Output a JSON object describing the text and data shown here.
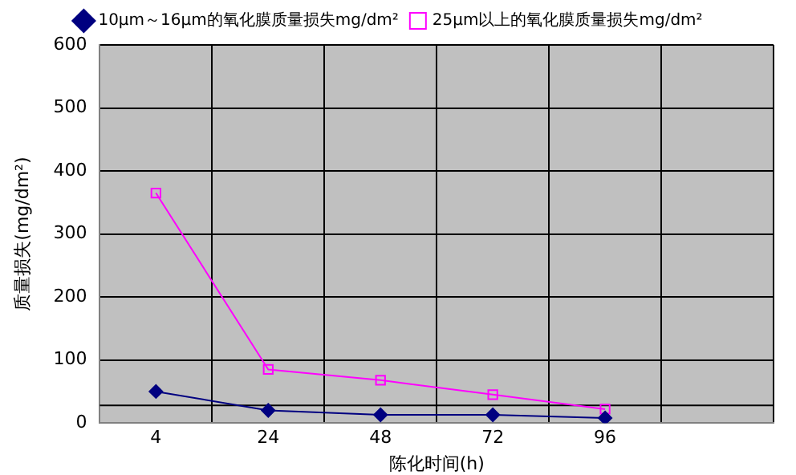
{
  "chart_data": {
    "type": "line",
    "xlabel": "陈化时间(h)",
    "ylabel": "质量损失(mg/dm²)",
    "categories": [
      "4",
      "24",
      "48",
      "72",
      "96",
      null
    ],
    "series": [
      {
        "name": "10μm～16μm的氧化膜质量损失mg/dm²",
        "color": "#000080",
        "marker": "diamond",
        "values": [
          50,
          20,
          13,
          13,
          8,
          null
        ]
      },
      {
        "name": "25μm以上的氧化膜质量损失mg/dm²",
        "color": "#ff00ff",
        "marker": "square",
        "values": [
          365,
          85,
          68,
          45,
          22,
          null
        ]
      }
    ],
    "ylim": [
      0,
      600
    ],
    "yticks": [
      0,
      100,
      200,
      300,
      400,
      500,
      600
    ],
    "grid": true,
    "legend": "top",
    "ref_lines": [
      {
        "axis": "y",
        "value": 28,
        "color": "#000000"
      }
    ]
  }
}
